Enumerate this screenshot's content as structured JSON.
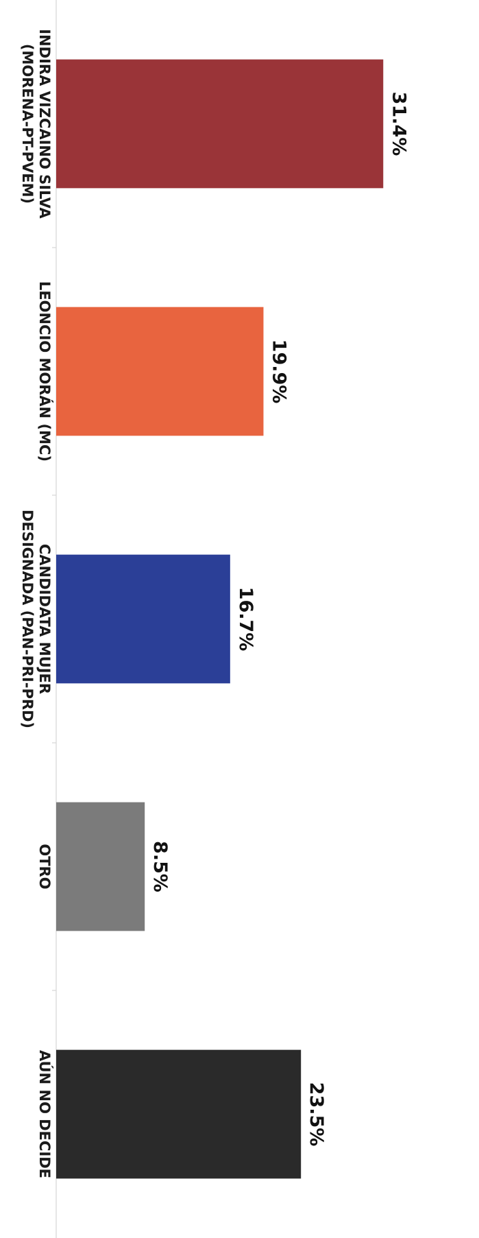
{
  "chart_data": {
    "type": "bar",
    "orientation": "horizontal",
    "categories": [
      [
        "INDIRA VIZCAINO SILVA",
        "(MORENA-PT-PVEM)"
      ],
      [
        "LEONCIO MORÁN (MC)"
      ],
      [
        "CANDIDATA MUJER",
        "DESIGNADA (PAN-PRI-PRD)"
      ],
      [
        "OTRO"
      ],
      [
        "AÚN NO DECIDE"
      ]
    ],
    "values": [
      31.4,
      19.9,
      16.7,
      8.5,
      23.5
    ],
    "value_labels": [
      "31.4%",
      "19.9%",
      "16.7%",
      "8.5%",
      "23.5%"
    ],
    "colors": [
      "#9a3438",
      "#e8643f",
      "#2b3f97",
      "#7b7b7b",
      "#2a2a2a"
    ],
    "xlim": [
      0,
      40
    ],
    "title": "",
    "xlabel": "",
    "ylabel": "",
    "grid": false,
    "legend": "none"
  }
}
